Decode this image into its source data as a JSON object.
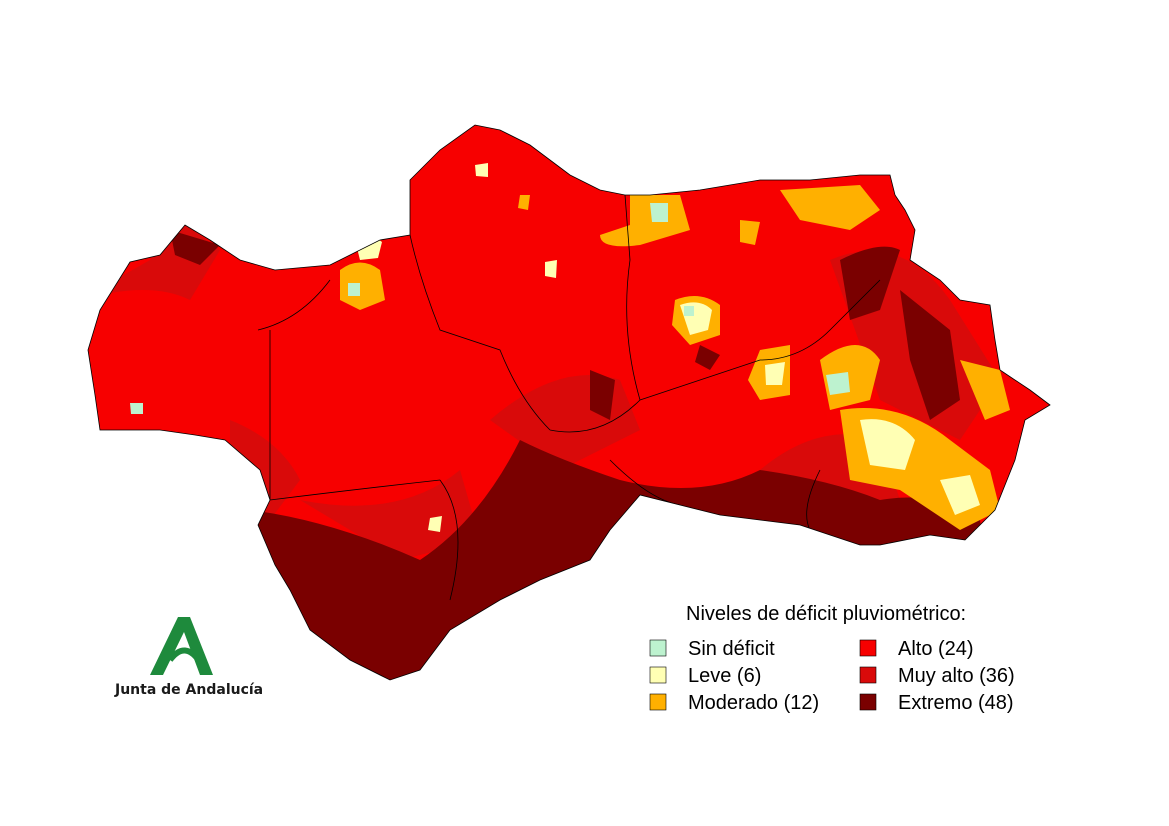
{
  "legend": {
    "title": "Niveles de déficit pluviométrico:",
    "items": [
      {
        "label": "Sin déficit",
        "color": "#bdf2cf"
      },
      {
        "label": "Leve (6)",
        "color": "#ffffb4"
      },
      {
        "label": "Moderado (12)",
        "color": "#ffb000"
      },
      {
        "label": "Alto (24)",
        "color": "#f70000"
      },
      {
        "label": "Muy alto (36)",
        "color": "#d90a0a"
      },
      {
        "label": "Extremo (48)",
        "color": "#7a0000"
      }
    ]
  },
  "logo": {
    "text": "Junta de Andalucía"
  }
}
